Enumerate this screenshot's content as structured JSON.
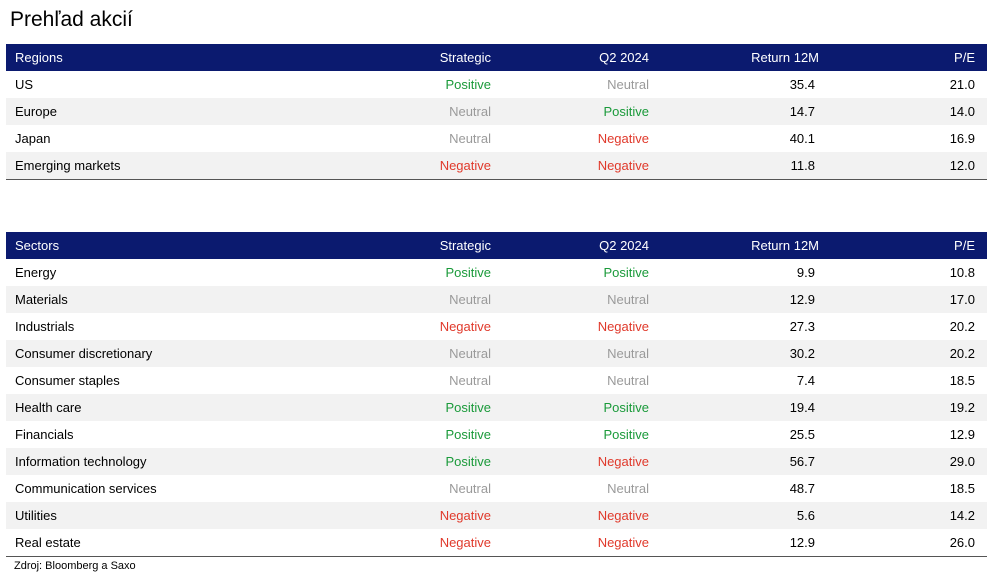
{
  "title": "Prehľad akcií",
  "colors": {
    "header_bg": "#0b1a6f",
    "positive": "#1a9a3a",
    "neutral": "#9a9a9a",
    "negative": "#e0392b"
  },
  "regions": {
    "headers": [
      "Regions",
      "Strategic",
      "Q2 2024",
      "Return 12M",
      "P/E"
    ],
    "rows": [
      [
        "US",
        "Positive",
        "Neutral",
        "35.4",
        "21.0"
      ],
      [
        "Europe",
        "Neutral",
        "Positive",
        "14.7",
        "14.0"
      ],
      [
        "Japan",
        "Neutral",
        "Negative",
        "40.1",
        "16.9"
      ],
      [
        "Emerging markets",
        "Negative",
        "Negative",
        "11.8",
        "12.0"
      ]
    ]
  },
  "sectors": {
    "headers": [
      "Sectors",
      "Strategic",
      "Q2 2024",
      "Return 12M",
      "P/E"
    ],
    "rows": [
      [
        "Energy",
        "Positive",
        "Positive",
        "9.9",
        "10.8"
      ],
      [
        "Materials",
        "Neutral",
        "Neutral",
        "12.9",
        "17.0"
      ],
      [
        "Industrials",
        "Negative",
        "Negative",
        "27.3",
        "20.2"
      ],
      [
        "Consumer discretionary",
        "Neutral",
        "Neutral",
        "30.2",
        "20.2"
      ],
      [
        "Consumer staples",
        "Neutral",
        "Neutral",
        "7.4",
        "18.5"
      ],
      [
        "Health care",
        "Positive",
        "Positive",
        "19.4",
        "19.2"
      ],
      [
        "Financials",
        "Positive",
        "Positive",
        "25.5",
        "12.9"
      ],
      [
        "Information technology",
        "Positive",
        "Negative",
        "56.7",
        "29.0"
      ],
      [
        "Communication services",
        "Neutral",
        "Neutral",
        "48.7",
        "18.5"
      ],
      [
        "Utilities",
        "Negative",
        "Negative",
        "5.6",
        "14.2"
      ],
      [
        "Real estate",
        "Negative",
        "Negative",
        "12.9",
        "26.0"
      ]
    ]
  },
  "source": "Zdroj: Bloomberg a Saxo"
}
